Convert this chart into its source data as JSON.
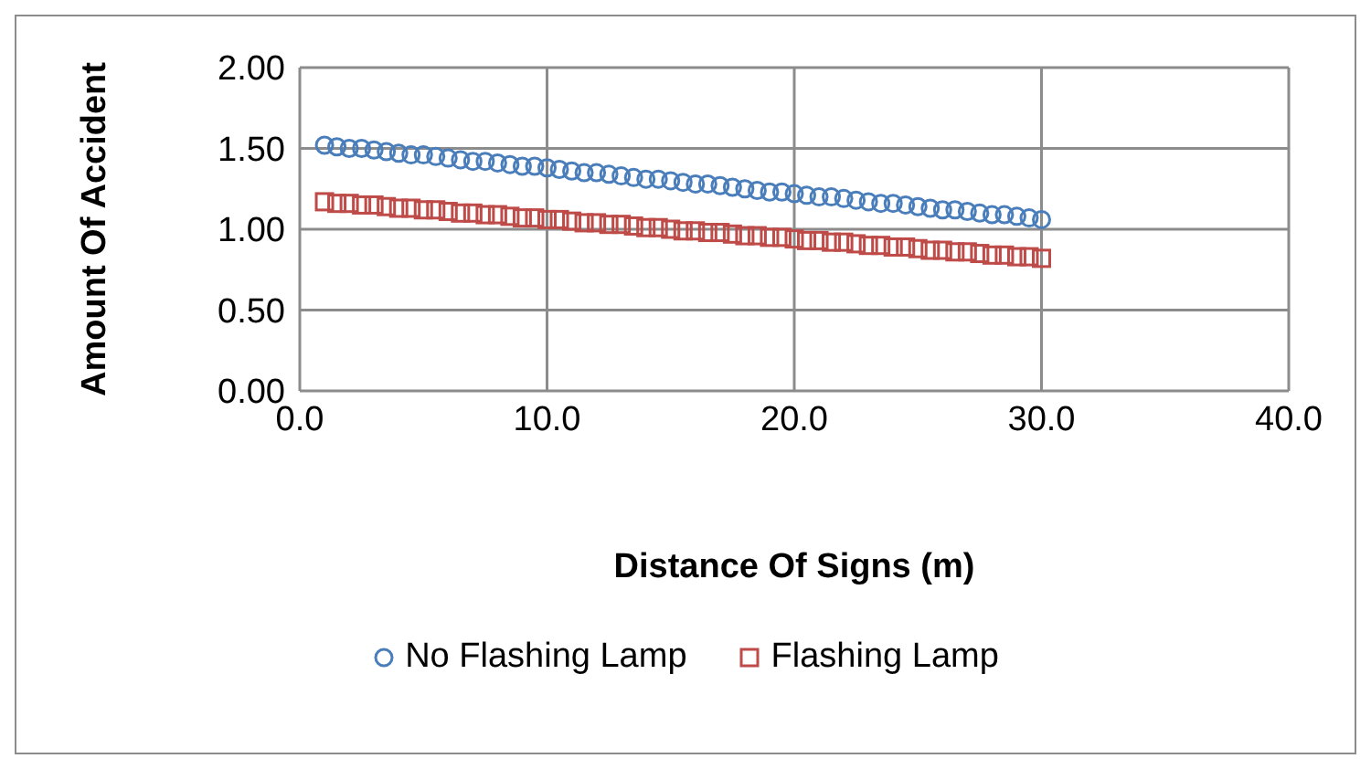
{
  "chart_data": {
    "type": "scatter",
    "xlabel": "Distance Of Signs (m)",
    "ylabel": "Amount Of Accident",
    "xlim": [
      0,
      40
    ],
    "xticks": [
      {
        "value": 0,
        "label": "0.0"
      },
      {
        "value": 10,
        "label": "10.0"
      },
      {
        "value": 20,
        "label": "20.0"
      },
      {
        "value": 30,
        "label": "30.0"
      },
      {
        "value": 40,
        "label": "40.0"
      }
    ],
    "ylim": [
      0,
      2
    ],
    "yticks": [
      {
        "value": 0,
        "label": "0.00"
      },
      {
        "value": 0.5,
        "label": "0.50"
      },
      {
        "value": 1,
        "label": "1.00"
      },
      {
        "value": 1.5,
        "label": "1.50"
      },
      {
        "value": 2,
        "label": "2.00"
      }
    ],
    "grid": true,
    "legend": "bottom",
    "x": [
      1,
      1.5,
      2,
      2.5,
      3,
      3.5,
      4,
      4.5,
      5,
      5.5,
      6,
      6.5,
      7,
      7.5,
      8,
      8.5,
      9,
      9.5,
      10,
      10.5,
      11,
      11.5,
      12,
      12.5,
      13,
      13.5,
      14,
      14.5,
      15,
      15.5,
      16,
      16.5,
      17,
      17.5,
      18,
      18.5,
      19,
      19.5,
      20,
      20.5,
      21,
      21.5,
      22,
      22.5,
      23,
      23.5,
      24,
      24.5,
      25,
      25.5,
      26,
      26.5,
      27,
      27.5,
      28,
      28.5,
      29,
      29.5,
      30
    ],
    "series": [
      {
        "name": "No Flashing Lamp",
        "color": "#4a7ebb",
        "marker": "circle",
        "values": [
          1.52,
          1.51,
          1.5,
          1.5,
          1.49,
          1.48,
          1.47,
          1.46,
          1.46,
          1.45,
          1.44,
          1.43,
          1.42,
          1.42,
          1.41,
          1.4,
          1.39,
          1.39,
          1.38,
          1.37,
          1.36,
          1.35,
          1.35,
          1.34,
          1.33,
          1.32,
          1.31,
          1.31,
          1.3,
          1.29,
          1.28,
          1.28,
          1.27,
          1.26,
          1.25,
          1.24,
          1.23,
          1.23,
          1.22,
          1.21,
          1.2,
          1.2,
          1.19,
          1.18,
          1.17,
          1.16,
          1.16,
          1.15,
          1.14,
          1.13,
          1.12,
          1.12,
          1.11,
          1.1,
          1.09,
          1.09,
          1.08,
          1.07,
          1.06
        ]
      },
      {
        "name": "Flashing Lamp",
        "color": "#be4b48",
        "marker": "square",
        "values": [
          1.17,
          1.16,
          1.16,
          1.15,
          1.15,
          1.14,
          1.13,
          1.13,
          1.12,
          1.12,
          1.11,
          1.1,
          1.1,
          1.09,
          1.09,
          1.08,
          1.07,
          1.07,
          1.06,
          1.06,
          1.05,
          1.04,
          1.04,
          1.03,
          1.03,
          1.02,
          1.01,
          1.01,
          1.0,
          0.99,
          0.99,
          0.98,
          0.98,
          0.97,
          0.96,
          0.96,
          0.95,
          0.95,
          0.94,
          0.93,
          0.93,
          0.92,
          0.92,
          0.91,
          0.9,
          0.9,
          0.89,
          0.89,
          0.88,
          0.87,
          0.87,
          0.86,
          0.86,
          0.85,
          0.84,
          0.84,
          0.83,
          0.83,
          0.82
        ]
      }
    ]
  }
}
